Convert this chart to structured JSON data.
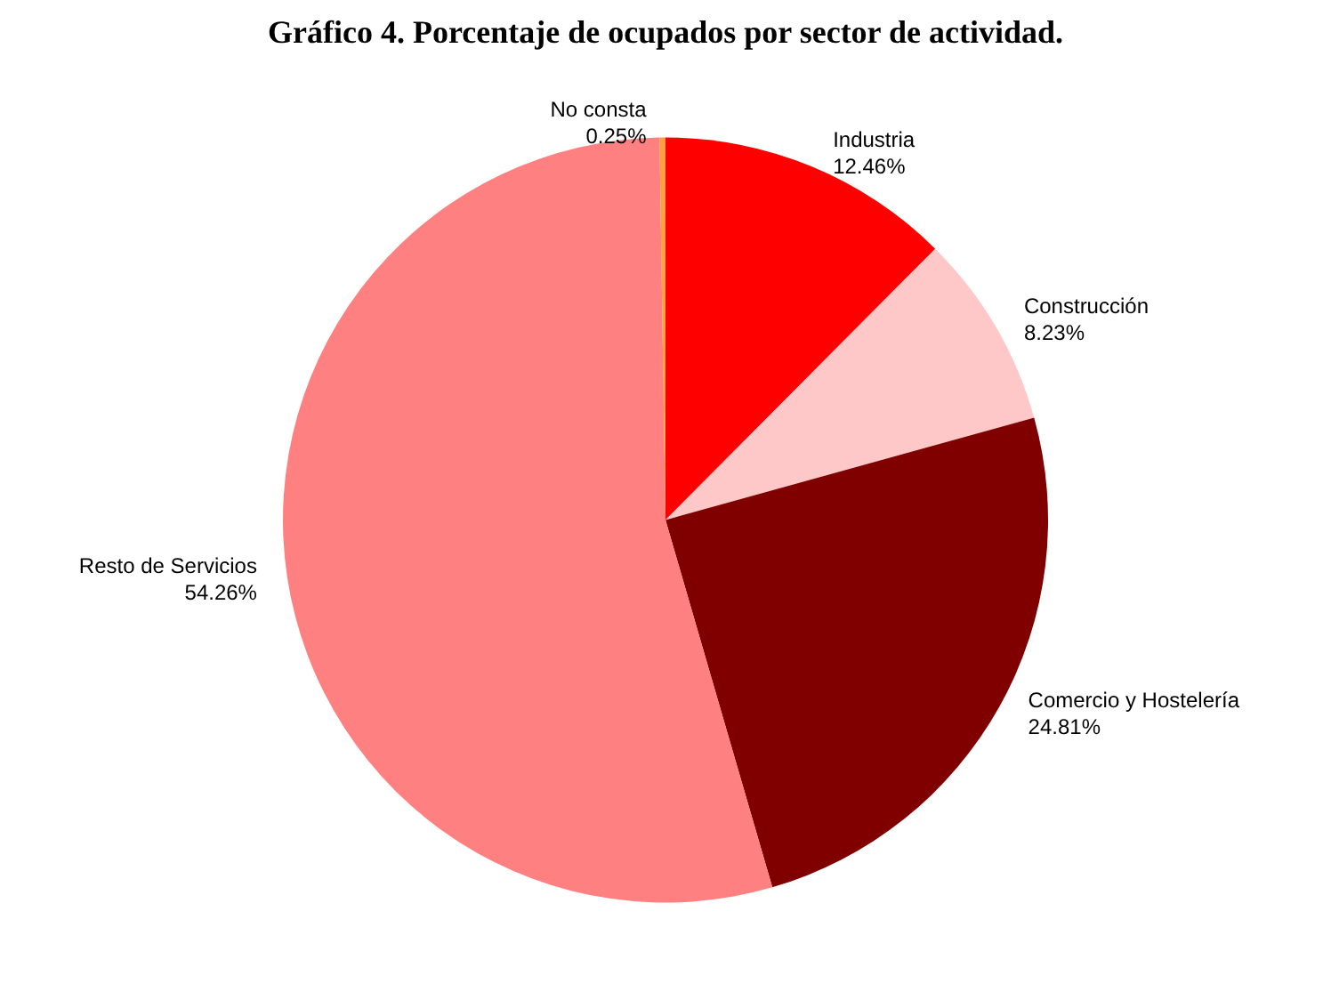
{
  "chart_data": {
    "type": "pie",
    "title": "Gráfico 4. Porcentaje de ocupados por sector de actividad.",
    "categories": [
      "Industria",
      "Construcción",
      "Comercio y Hostelería",
      "Resto de Servicios",
      "No consta"
    ],
    "values": [
      12.46,
      8.23,
      24.81,
      54.26,
      0.25
    ],
    "value_labels": [
      "12.46%",
      "8.23%",
      "24.81%",
      "54.26%",
      "0.25%"
    ],
    "colors": [
      "#ff0000",
      "#ffc8c8",
      "#800000",
      "#ff8080",
      "#ffa040"
    ]
  }
}
